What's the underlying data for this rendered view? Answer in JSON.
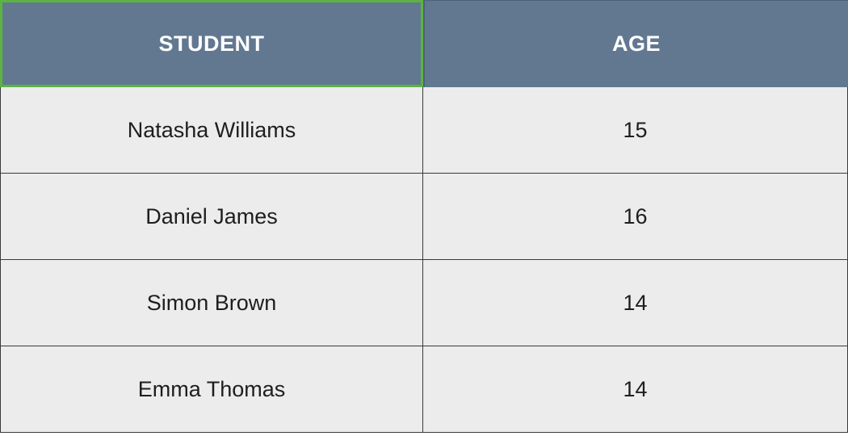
{
  "table": {
    "headers": {
      "student": "STUDENT",
      "age": "AGE"
    },
    "rows": [
      {
        "student": "Natasha Williams",
        "age": "15"
      },
      {
        "student": "Daniel James",
        "age": "16"
      },
      {
        "student": "Simon Brown",
        "age": "14"
      },
      {
        "student": "Emma Thomas",
        "age": "14"
      }
    ],
    "colors": {
      "header_bg": "#627891",
      "header_text": "#ffffff",
      "selected_cell_border": "#5bb43f",
      "row_bg": "#ececec",
      "row_text": "#1e1e1e",
      "grid_line": "#3a3a3a"
    }
  }
}
